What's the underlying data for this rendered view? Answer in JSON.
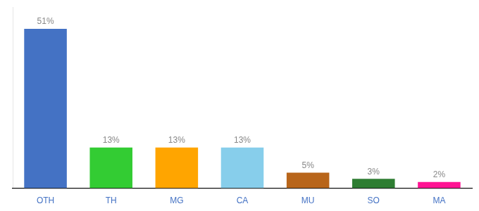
{
  "chart_data": {
    "type": "bar",
    "categories": [
      "OTH",
      "TH",
      "MG",
      "CA",
      "MU",
      "SO",
      "MA"
    ],
    "values": [
      51,
      13,
      13,
      13,
      5,
      3,
      2
    ],
    "value_labels": [
      "51%",
      "13%",
      "13%",
      "13%",
      "5%",
      "3%",
      "2%"
    ],
    "data_labels": true,
    "colors": [
      "#4472C4",
      "#33CC33",
      "#FFA500",
      "#87CEEB",
      "#B8651A",
      "#2E7D32",
      "#FF1493"
    ],
    "ylim": [
      0,
      58
    ],
    "grid": false,
    "tick_labels": "x"
  }
}
